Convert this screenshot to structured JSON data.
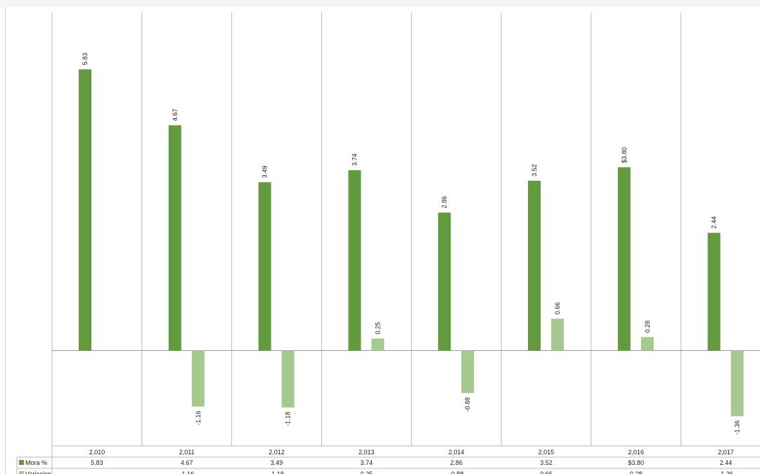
{
  "chart_data": {
    "type": "bar",
    "categories": [
      "2,010",
      "2,011",
      "2,012",
      "2,013",
      "2,014",
      "2,015",
      "2,016",
      "2,017"
    ],
    "series": [
      {
        "name": "Mora %",
        "color": "#629a3e",
        "values": [
          5.83,
          4.67,
          3.49,
          3.74,
          2.86,
          3.52,
          3.8,
          2.44
        ],
        "labels": [
          "5.83",
          "4.67",
          "3.49",
          "3.74",
          "2.86",
          "3.52",
          "$3.80",
          "2.44"
        ]
      },
      {
        "name": "Variacion",
        "color": "#a6c98f",
        "values": [
          null,
          -1.16,
          -1.18,
          0.25,
          -0.88,
          0.66,
          0.28,
          -1.36
        ],
        "labels": [
          "",
          "-1.16",
          "-1.18",
          "0.25",
          "-0.88",
          "0.66",
          "0.28",
          "-1.36"
        ]
      }
    ],
    "title": "",
    "xlabel": "",
    "ylabel": "",
    "grid": "vertical",
    "legend": "data-table-left"
  }
}
